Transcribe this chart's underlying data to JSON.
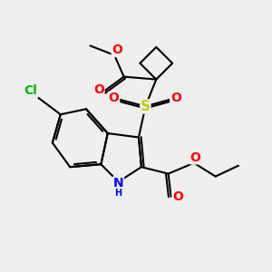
{
  "bg_color": "#efefef",
  "bond_color": "#000000",
  "bond_width": 1.5,
  "atom_colors": {
    "O": "#ff0000",
    "S": "#cccc00",
    "N": "#0000ff",
    "Cl": "#00bb00",
    "C": "#000000"
  },
  "font_size": 9,
  "fig_size": [
    3.0,
    3.0
  ],
  "dpi": 100,
  "xlim": [
    0,
    10
  ],
  "ylim": [
    0,
    10
  ]
}
